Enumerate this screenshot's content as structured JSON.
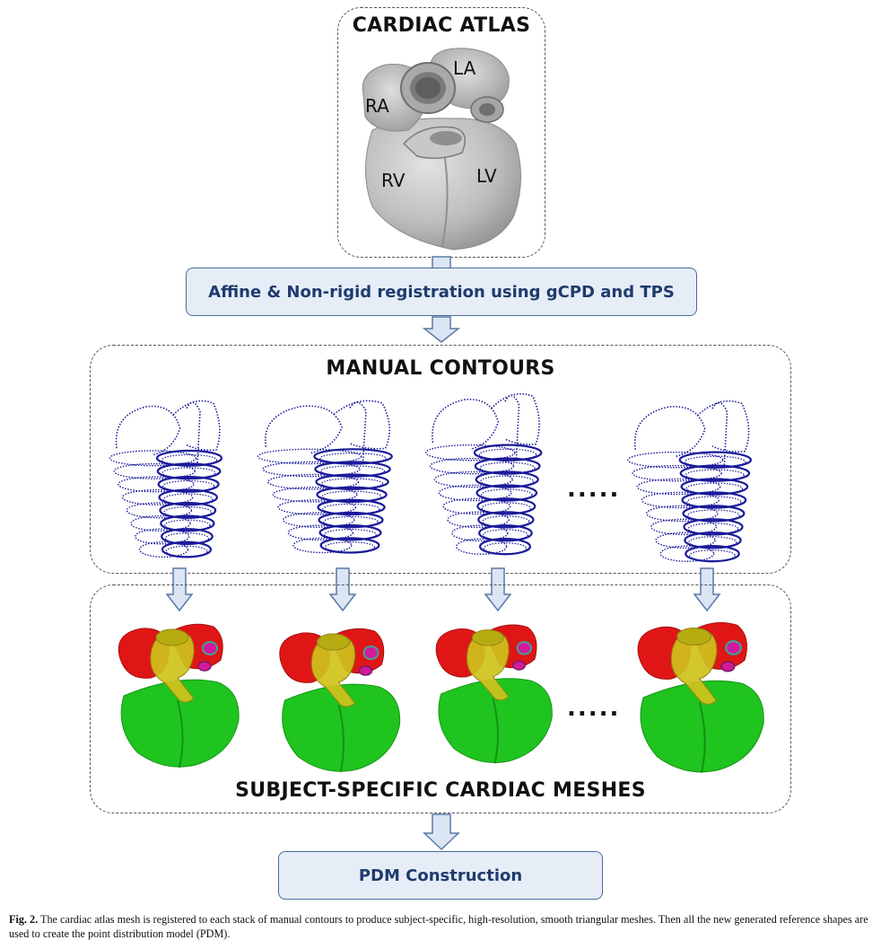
{
  "atlas": {
    "title": "CARDIAC ATLAS",
    "labels": {
      "ra": "RA",
      "la": "LA",
      "rv": "RV",
      "lv": "LV"
    }
  },
  "registration": {
    "label": "Affine & Non-rigid registration using gCPD and TPS"
  },
  "contours": {
    "title": "MANUAL CONTOURS",
    "ellipsis": "....."
  },
  "meshes": {
    "title": "SUBJECT-SPECIFIC CARDIAC MESHES",
    "ellipsis": "....."
  },
  "pdm": {
    "label": "PDM Construction"
  },
  "caption": {
    "prefix": "Fig. 2.",
    "text": "The cardiac atlas mesh is registered to each stack of manual contours to produce subject-specific, high-resolution, smooth triangular meshes. Then all the new generated reference shapes are used to create the point distribution model (PDM)."
  },
  "colors": {
    "arrow_fill": "#dbe5f3",
    "arrow_stroke": "#5a7aa8",
    "contour": "#1a1a9a",
    "atria": "#e01616",
    "ventricles": "#1fc41f",
    "vessels": "#cfc21c",
    "atlas_gray": "#b8b8b8"
  }
}
